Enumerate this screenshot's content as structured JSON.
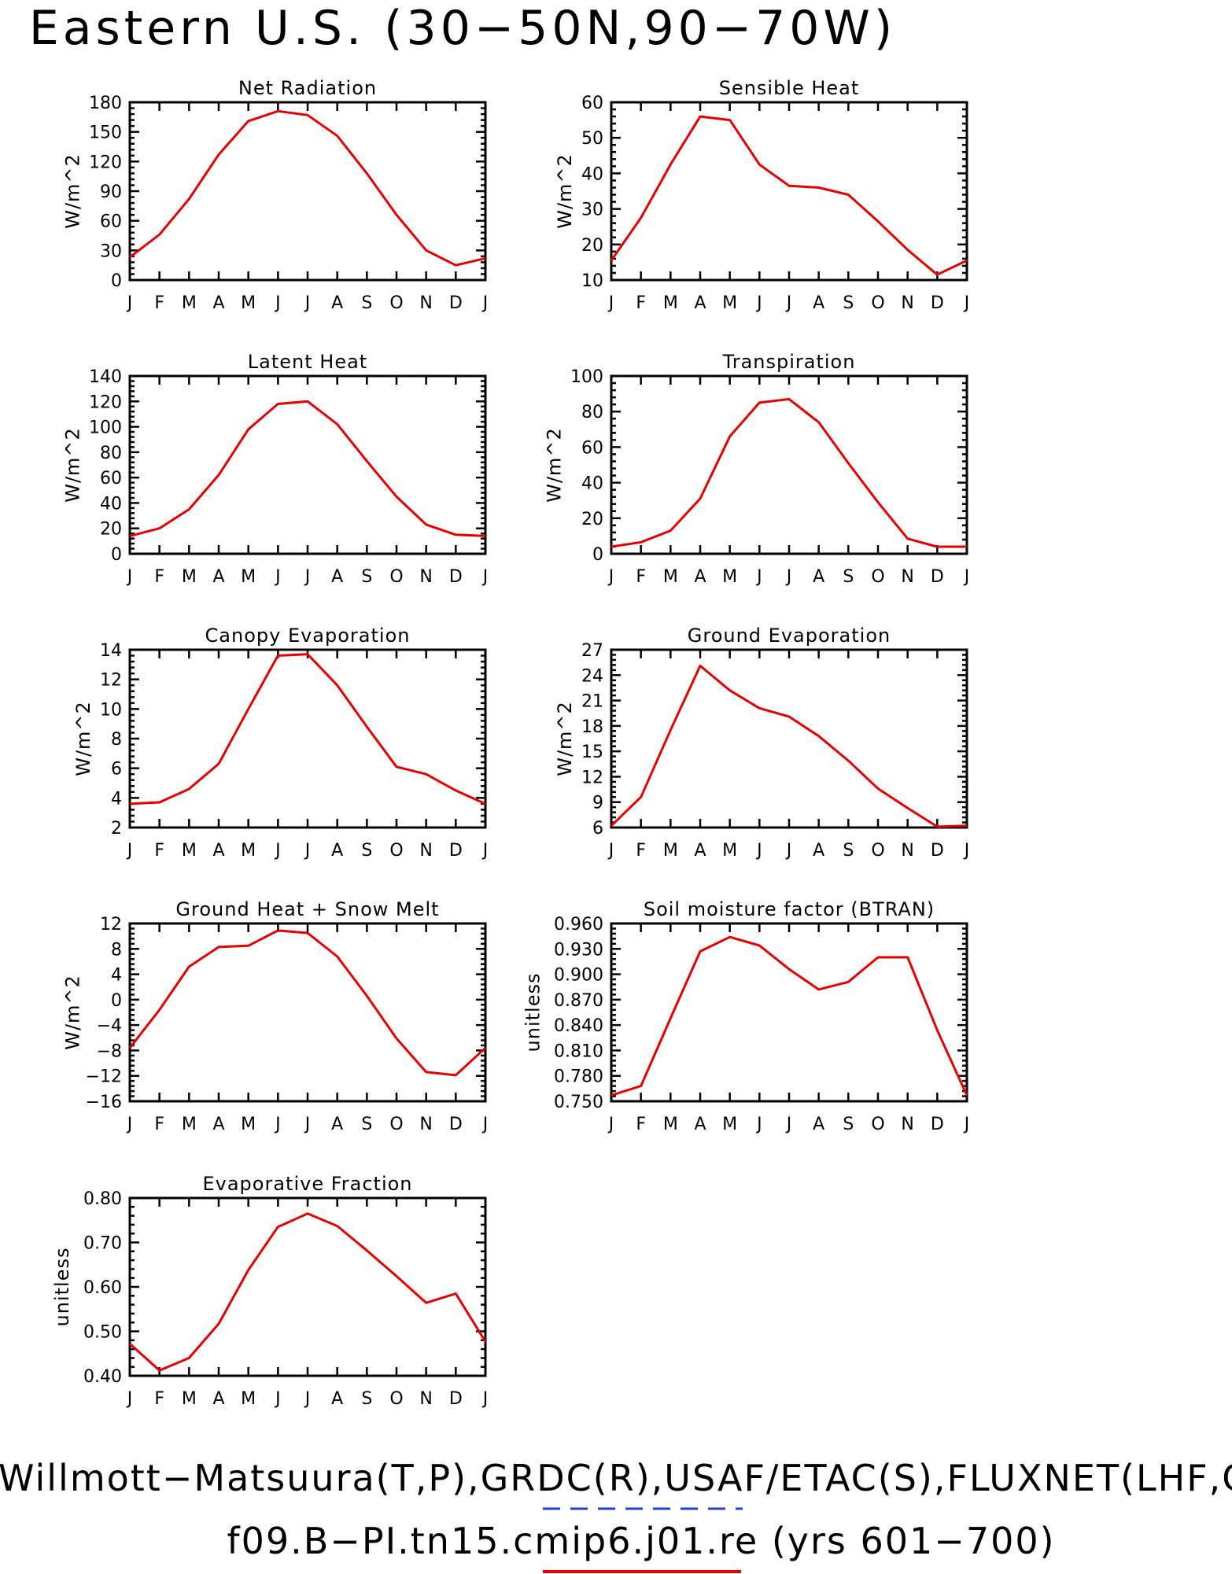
{
  "figure": {
    "title": "Eastern U.S. (30−50N,90−70W)",
    "footer_line1": "Willmott−Matsuura(T,P),GRDC(R),USAF/ETAC(S),FLUXNET(LHF,GPP)",
    "footer_line2": "f09.B−PI.tn15.cmip6.j01.re (yrs 601−700)",
    "line_color": "#e60000",
    "obs_marker_color": "#1f3fd6",
    "model_marker_color": "#e60000"
  },
  "chart_data": [
    {
      "type": "line",
      "title": "Net Radiation",
      "ylabel": "W/m^2",
      "x": [
        "J",
        "F",
        "M",
        "A",
        "M",
        "J",
        "J",
        "A",
        "S",
        "O",
        "N",
        "D",
        "J"
      ],
      "ylim": [
        0,
        180
      ],
      "yticks": [
        "0",
        "30",
        "60",
        "90",
        "120",
        "150",
        "180"
      ],
      "series": [
        {
          "values": [
            23,
            46,
            82,
            127,
            161,
            171,
            167,
            146,
            108,
            66,
            30,
            15,
            22
          ]
        }
      ]
    },
    {
      "type": "line",
      "title": "Sensible Heat",
      "ylabel": "W/m^2",
      "x": [
        "J",
        "F",
        "M",
        "A",
        "M",
        "J",
        "J",
        "A",
        "S",
        "O",
        "N",
        "D",
        "J"
      ],
      "ylim": [
        10,
        60
      ],
      "yticks": [
        "10",
        "20",
        "30",
        "40",
        "50",
        "60"
      ],
      "series": [
        {
          "values": [
            15.5,
            27.5,
            42.5,
            56,
            55,
            42.5,
            36.5,
            36,
            34,
            26.5,
            18.5,
            11.5,
            15.5
          ]
        }
      ]
    },
    {
      "type": "line",
      "title": "Latent Heat",
      "ylabel": "W/m^2",
      "x": [
        "J",
        "F",
        "M",
        "A",
        "M",
        "J",
        "J",
        "A",
        "S",
        "O",
        "N",
        "D",
        "J"
      ],
      "ylim": [
        0,
        140
      ],
      "yticks": [
        "0",
        "20",
        "40",
        "60",
        "80",
        "100",
        "120",
        "140"
      ],
      "series": [
        {
          "values": [
            14,
            20,
            35,
            62,
            98,
            118,
            120,
            102,
            73,
            45,
            23,
            15,
            14
          ]
        }
      ]
    },
    {
      "type": "line",
      "title": "Transpiration",
      "ylabel": "W/m^2",
      "x": [
        "J",
        "F",
        "M",
        "A",
        "M",
        "J",
        "J",
        "A",
        "S",
        "O",
        "N",
        "D",
        "J"
      ],
      "ylim": [
        0,
        100
      ],
      "yticks": [
        "0",
        "20",
        "40",
        "60",
        "80",
        "100"
      ],
      "series": [
        {
          "values": [
            4,
            6.5,
            13,
            31,
            66,
            85,
            87,
            74,
            51,
            29,
            8.5,
            4,
            4
          ]
        }
      ]
    },
    {
      "type": "line",
      "title": "Canopy Evaporation",
      "ylabel": "W/m^2",
      "x": [
        "J",
        "F",
        "M",
        "A",
        "M",
        "J",
        "J",
        "A",
        "S",
        "O",
        "N",
        "D",
        "J"
      ],
      "ylim": [
        2,
        14
      ],
      "yticks": [
        "2",
        "4",
        "6",
        "8",
        "10",
        "12",
        "14"
      ],
      "series": [
        {
          "values": [
            3.6,
            3.7,
            4.6,
            6.3,
            10,
            13.6,
            13.7,
            11.6,
            8.8,
            6.1,
            5.6,
            4.5,
            3.6
          ]
        }
      ]
    },
    {
      "type": "line",
      "title": "Ground Evaporation",
      "ylabel": "W/m^2",
      "x": [
        "J",
        "F",
        "M",
        "A",
        "M",
        "J",
        "J",
        "A",
        "S",
        "O",
        "N",
        "D",
        "J"
      ],
      "ylim": [
        6,
        27
      ],
      "yticks": [
        "6",
        "9",
        "12",
        "15",
        "18",
        "21",
        "24",
        "27"
      ],
      "series": [
        {
          "values": [
            6.2,
            9.6,
            17.5,
            25.1,
            22.2,
            20.1,
            19.1,
            16.8,
            13.9,
            10.6,
            8.3,
            6.1,
            6.2
          ]
        }
      ]
    },
    {
      "type": "line",
      "title": "Ground Heat + Snow Melt",
      "ylabel": "W/m^2",
      "x": [
        "J",
        "F",
        "M",
        "A",
        "M",
        "J",
        "J",
        "A",
        "S",
        "O",
        "N",
        "D",
        "J"
      ],
      "ylim": [
        -16,
        12
      ],
      "yticks": [
        "−16",
        "−12",
        "−8",
        "−4",
        "0",
        "4",
        "8",
        "12"
      ],
      "series": [
        {
          "values": [
            -7.6,
            -1.6,
            5.2,
            8.3,
            8.5,
            10.9,
            10.5,
            6.8,
            0.6,
            -6.1,
            -11.4,
            -11.9,
            -7.6
          ]
        }
      ]
    },
    {
      "type": "line",
      "title": "Soil moisture factor (BTRAN)",
      "ylabel": "unitless",
      "x": [
        "J",
        "F",
        "M",
        "A",
        "M",
        "J",
        "J",
        "A",
        "S",
        "O",
        "N",
        "D",
        "J"
      ],
      "ylim": [
        0.75,
        0.96
      ],
      "yticks": [
        "0.750",
        "0.780",
        "0.810",
        "0.840",
        "0.870",
        "0.900",
        "0.930",
        "0.960"
      ],
      "series": [
        {
          "values": [
            0.757,
            0.768,
            0.848,
            0.927,
            0.944,
            0.934,
            0.906,
            0.882,
            0.891,
            0.92,
            0.92,
            0.834,
            0.757
          ]
        }
      ]
    },
    {
      "type": "line",
      "title": "Evaporative Fraction",
      "ylabel": "unitless",
      "x": [
        "J",
        "F",
        "M",
        "A",
        "M",
        "J",
        "J",
        "A",
        "S",
        "O",
        "N",
        "D",
        "J"
      ],
      "ylim": [
        0.4,
        0.8
      ],
      "yticks": [
        "0.40",
        "0.50",
        "0.60",
        "0.70",
        "0.80"
      ],
      "series": [
        {
          "values": [
            0.472,
            0.412,
            0.44,
            0.517,
            0.638,
            0.735,
            0.765,
            0.737,
            0.682,
            0.624,
            0.564,
            0.585,
            0.477
          ]
        }
      ]
    }
  ]
}
